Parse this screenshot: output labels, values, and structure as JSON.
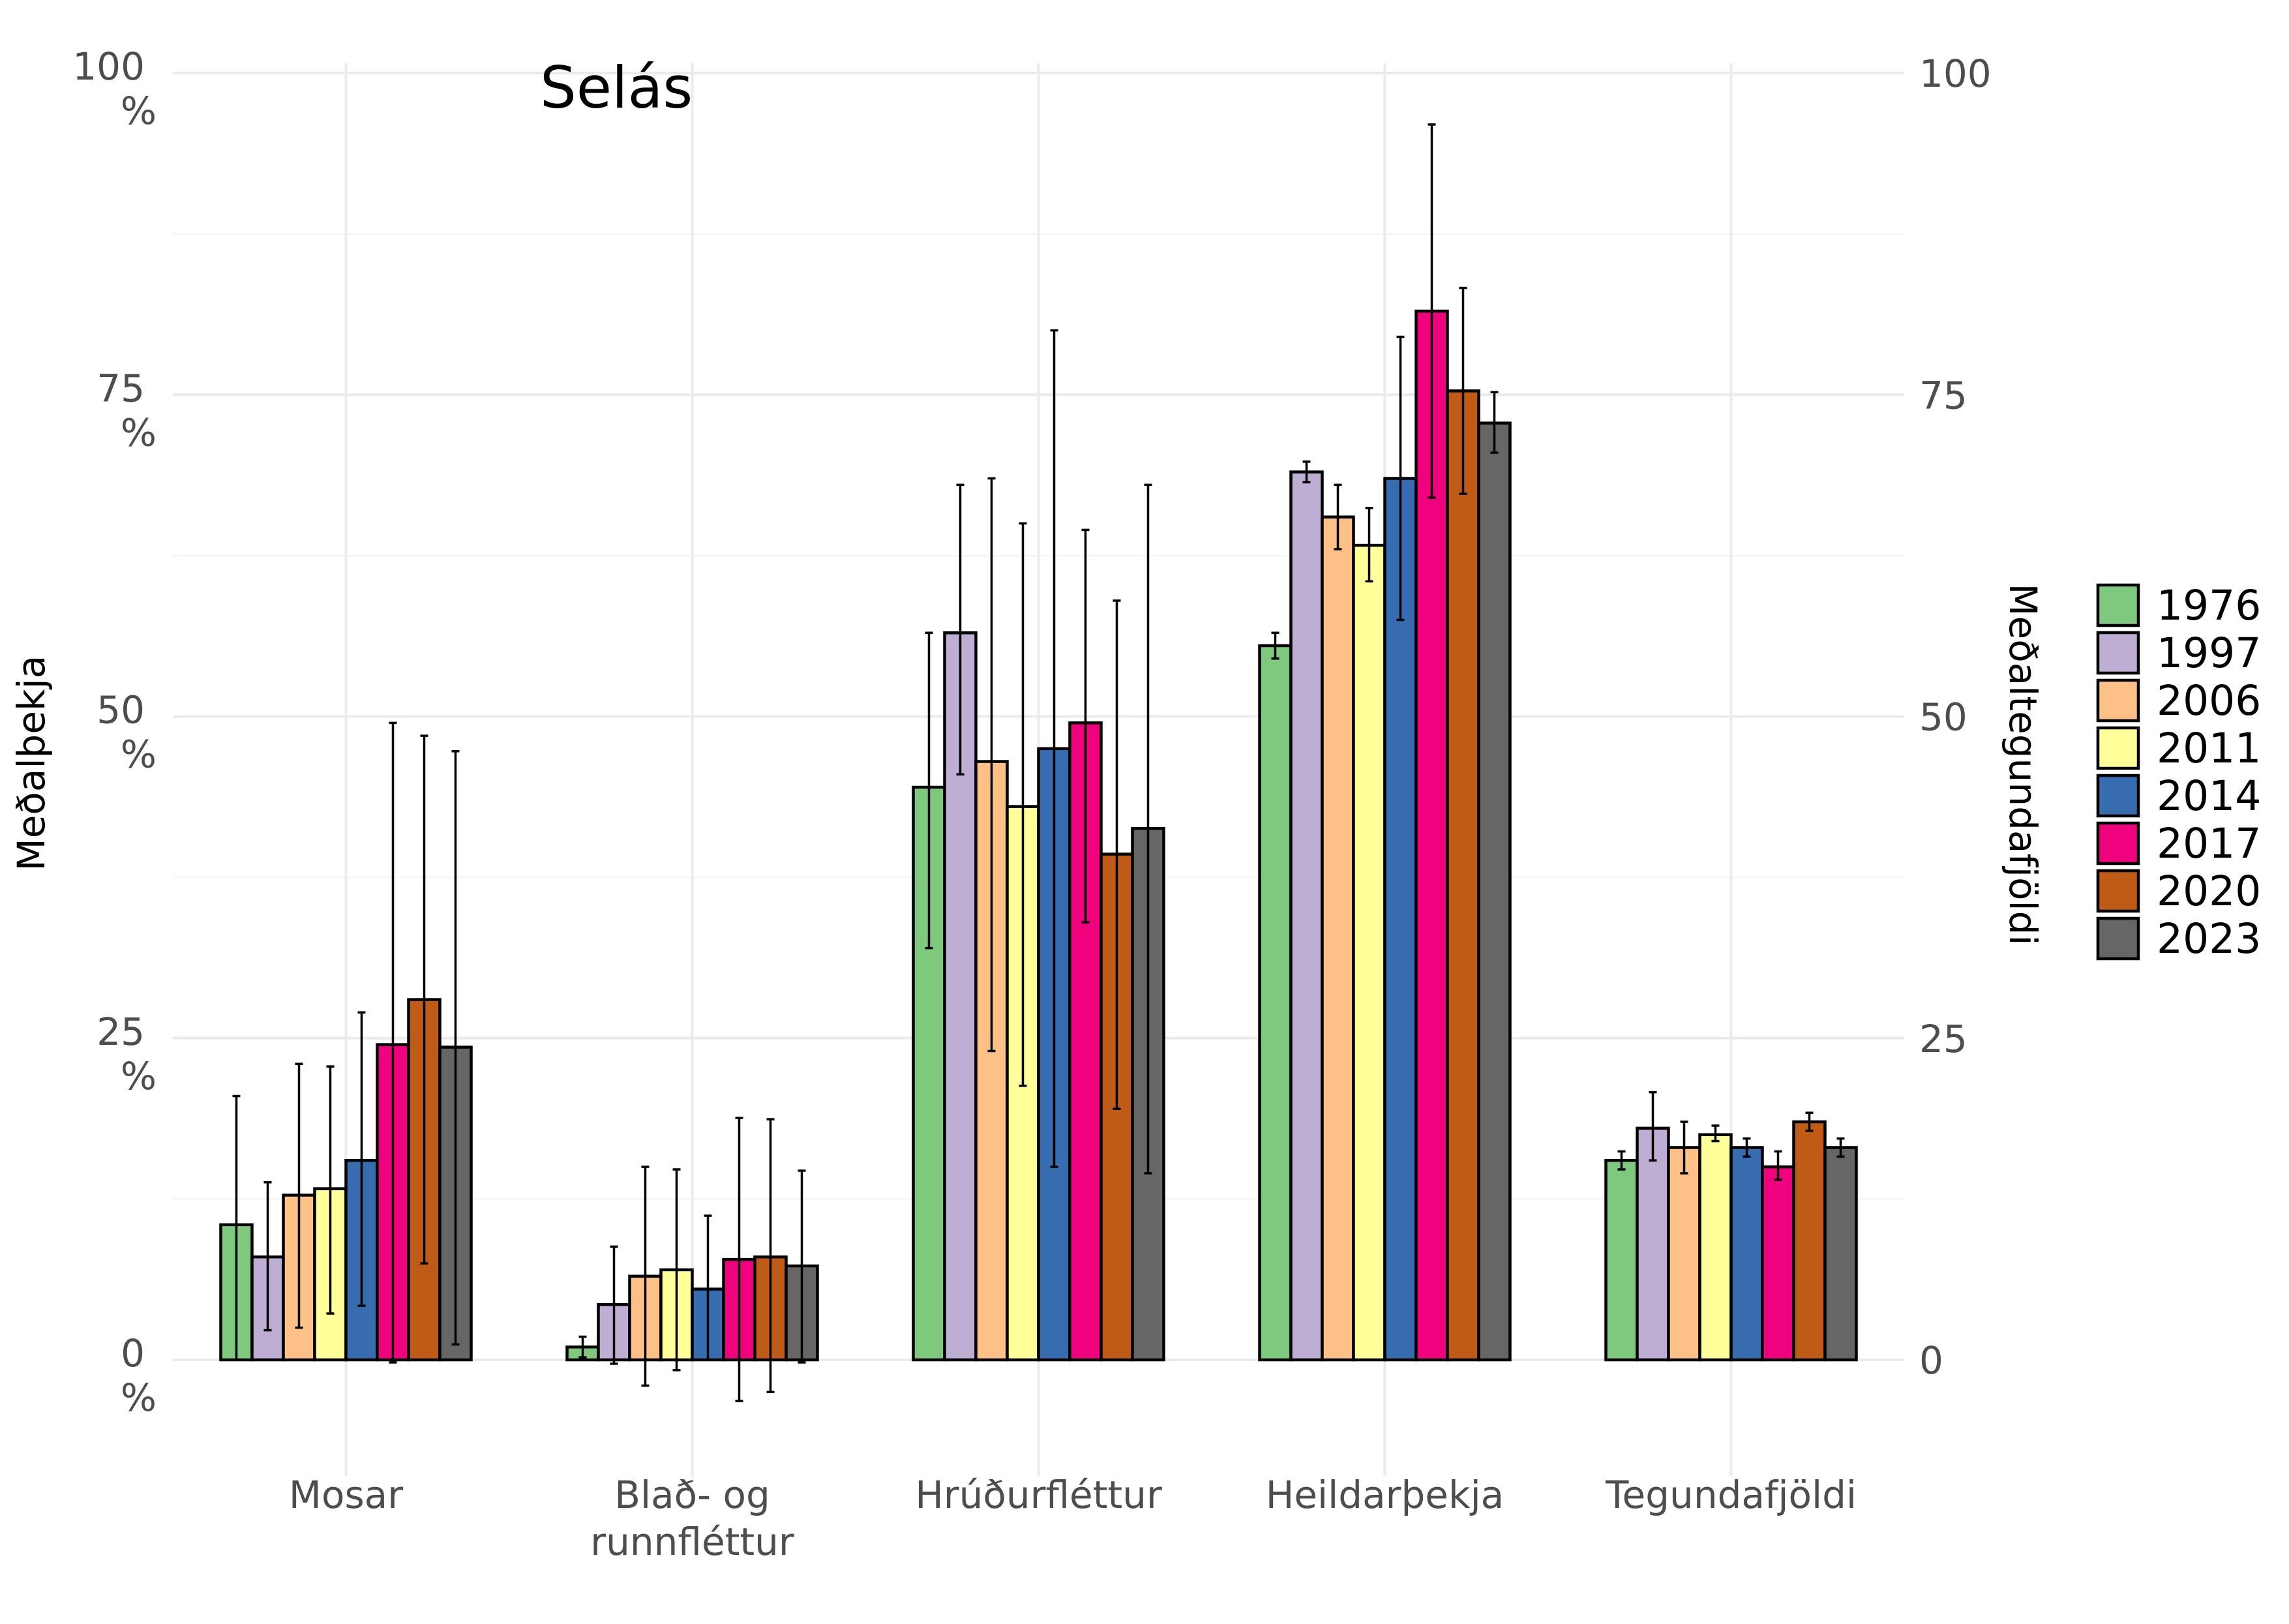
{
  "chart_data": {
    "type": "bar",
    "title": "Selás",
    "ylabel_left": "Meðalþekja",
    "ylabel_right": "Meðaltegundafjöldi",
    "xlabel": "",
    "ylim": [
      -7,
      100
    ],
    "left_ticks": [
      {
        "value": 0,
        "label_top": "0",
        "label_bottom": "%"
      },
      {
        "value": 25,
        "label_top": "25",
        "label_bottom": "%"
      },
      {
        "value": 50,
        "label_top": "50",
        "label_bottom": "%"
      },
      {
        "value": 75,
        "label_top": "75",
        "label_bottom": "%"
      },
      {
        "value": 100,
        "label_top": "100",
        "label_bottom": "%"
      }
    ],
    "right_ticks": [
      "0",
      "25",
      "50",
      "75",
      "100"
    ],
    "categories": [
      {
        "line1": "Mosar",
        "line2": ""
      },
      {
        "line1": "Blað- og",
        "line2": "runnfléttur"
      },
      {
        "line1": "Hrúðurfléttur",
        "line2": ""
      },
      {
        "line1": "Heildarþekja",
        "line2": ""
      },
      {
        "line1": "Tegundafjöldi",
        "line2": ""
      }
    ],
    "grid": true,
    "legend_position": "right",
    "series": [
      {
        "name": "1976",
        "color": "#7fc97f",
        "values": [
          10.5,
          1.0,
          44.5,
          55.5,
          15.5
        ],
        "err_low": [
          0,
          0.2,
          32,
          54.5,
          14.8
        ],
        "err_high": [
          20.5,
          1.8,
          56.5,
          56.5,
          16.2
        ]
      },
      {
        "name": "1997",
        "color": "#beaed4",
        "values": [
          8.0,
          4.3,
          56.5,
          69.0,
          18.0
        ],
        "err_low": [
          2.3,
          -0.3,
          45.5,
          68.2,
          15.5
        ],
        "err_high": [
          13.8,
          8.8,
          68.0,
          69.8,
          20.8
        ]
      },
      {
        "name": "2006",
        "color": "#fdc086",
        "values": [
          12.8,
          6.5,
          46.5,
          65.5,
          16.5
        ],
        "err_low": [
          2.5,
          -2.0,
          24.0,
          63.0,
          14.5
        ],
        "err_high": [
          23.0,
          15.0,
          68.5,
          68.0,
          18.5
        ]
      },
      {
        "name": "2011",
        "color": "#ffff99",
        "values": [
          13.3,
          7.0,
          43.0,
          63.3,
          17.5
        ],
        "err_low": [
          3.6,
          -0.8,
          21.3,
          60.5,
          17.0
        ],
        "err_high": [
          22.8,
          14.8,
          65.0,
          66.2,
          18.2
        ]
      },
      {
        "name": "2014",
        "color": "#386cb0",
        "values": [
          15.5,
          5.5,
          47.5,
          68.5,
          16.5
        ],
        "err_low": [
          4.2,
          0,
          15.0,
          57.5,
          15.8
        ],
        "err_high": [
          27.0,
          11.2,
          80.0,
          79.5,
          17.2
        ]
      },
      {
        "name": "2017",
        "color": "#f0027f",
        "values": [
          24.5,
          7.8,
          49.5,
          81.5,
          15.0
        ],
        "err_low": [
          -0.2,
          -3.2,
          34.0,
          67.0,
          14.0
        ],
        "err_high": [
          49.5,
          18.8,
          64.5,
          96.0,
          16.2
        ]
      },
      {
        "name": "2020",
        "color": "#bf5b17",
        "values": [
          28.0,
          8.0,
          39.3,
          75.3,
          18.5
        ],
        "err_low": [
          7.5,
          -2.5,
          19.5,
          67.3,
          17.8
        ],
        "err_high": [
          48.5,
          18.7,
          59.0,
          83.3,
          19.2
        ]
      },
      {
        "name": "2023",
        "color": "#666666",
        "values": [
          24.3,
          7.3,
          41.3,
          72.8,
          16.5
        ],
        "err_low": [
          1.2,
          -0.2,
          14.5,
          70.5,
          15.8
        ],
        "err_high": [
          47.3,
          14.7,
          68.0,
          75.2,
          17.2
        ]
      }
    ]
  }
}
